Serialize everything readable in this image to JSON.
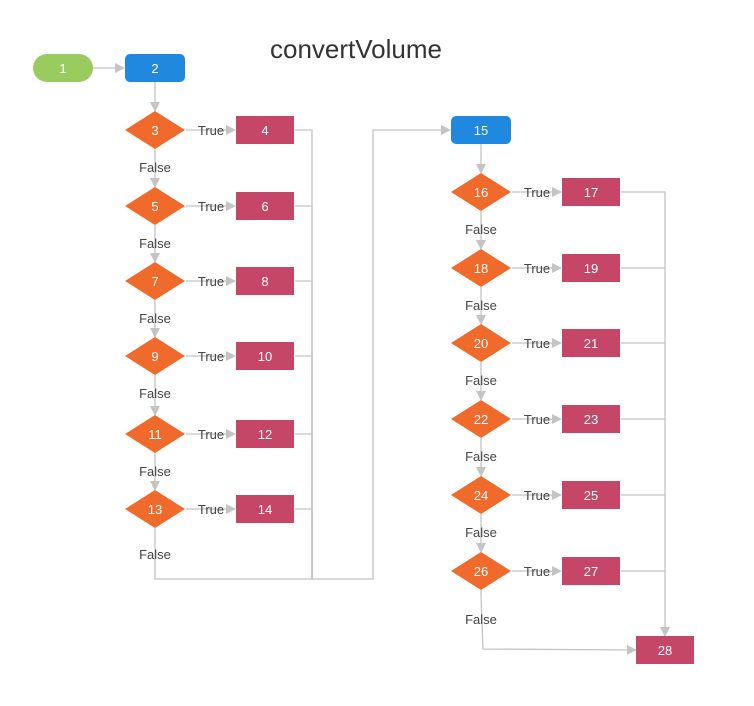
{
  "title": "convertVolume",
  "colors": {
    "start": "#9acb5e",
    "process": "#2188e0",
    "decision": "#f06a2c",
    "action": "#c64667",
    "edge": "#c4c4c4"
  },
  "nodes": [
    {
      "id": "1",
      "label": "1",
      "kind": "start"
    },
    {
      "id": "2",
      "label": "2",
      "kind": "process"
    },
    {
      "id": "3",
      "label": "3",
      "kind": "decision"
    },
    {
      "id": "4",
      "label": "4",
      "kind": "action"
    },
    {
      "id": "5",
      "label": "5",
      "kind": "decision"
    },
    {
      "id": "6",
      "label": "6",
      "kind": "action"
    },
    {
      "id": "7",
      "label": "7",
      "kind": "decision"
    },
    {
      "id": "8",
      "label": "8",
      "kind": "action"
    },
    {
      "id": "9",
      "label": "9",
      "kind": "decision"
    },
    {
      "id": "10",
      "label": "10",
      "kind": "action"
    },
    {
      "id": "11",
      "label": "11",
      "kind": "decision"
    },
    {
      "id": "12",
      "label": "12",
      "kind": "action"
    },
    {
      "id": "13",
      "label": "13",
      "kind": "decision"
    },
    {
      "id": "14",
      "label": "14",
      "kind": "action"
    },
    {
      "id": "15",
      "label": "15",
      "kind": "process"
    },
    {
      "id": "16",
      "label": "16",
      "kind": "decision"
    },
    {
      "id": "17",
      "label": "17",
      "kind": "action"
    },
    {
      "id": "18",
      "label": "18",
      "kind": "decision"
    },
    {
      "id": "19",
      "label": "19",
      "kind": "action"
    },
    {
      "id": "20",
      "label": "20",
      "kind": "decision"
    },
    {
      "id": "21",
      "label": "21",
      "kind": "action"
    },
    {
      "id": "22",
      "label": "22",
      "kind": "decision"
    },
    {
      "id": "23",
      "label": "23",
      "kind": "action"
    },
    {
      "id": "24",
      "label": "24",
      "kind": "decision"
    },
    {
      "id": "25",
      "label": "25",
      "kind": "action"
    },
    {
      "id": "26",
      "label": "26",
      "kind": "decision"
    },
    {
      "id": "27",
      "label": "27",
      "kind": "action"
    },
    {
      "id": "28",
      "label": "28",
      "kind": "action"
    }
  ],
  "edges": [
    {
      "from": "1",
      "to": "2",
      "label": ""
    },
    {
      "from": "2",
      "to": "3",
      "label": ""
    },
    {
      "from": "3",
      "to": "4",
      "label": "True"
    },
    {
      "from": "3",
      "to": "5",
      "label": "False"
    },
    {
      "from": "5",
      "to": "6",
      "label": "True"
    },
    {
      "from": "5",
      "to": "7",
      "label": "False"
    },
    {
      "from": "7",
      "to": "8",
      "label": "True"
    },
    {
      "from": "7",
      "to": "9",
      "label": "False"
    },
    {
      "from": "9",
      "to": "10",
      "label": "True"
    },
    {
      "from": "9",
      "to": "11",
      "label": "False"
    },
    {
      "from": "11",
      "to": "12",
      "label": "True"
    },
    {
      "from": "11",
      "to": "13",
      "label": "False"
    },
    {
      "from": "13",
      "to": "14",
      "label": "True"
    },
    {
      "from": "13",
      "to": "15",
      "label": "False"
    },
    {
      "from": "4",
      "to": "15",
      "label": ""
    },
    {
      "from": "6",
      "to": "15",
      "label": ""
    },
    {
      "from": "8",
      "to": "15",
      "label": ""
    },
    {
      "from": "10",
      "to": "15",
      "label": ""
    },
    {
      "from": "12",
      "to": "15",
      "label": ""
    },
    {
      "from": "14",
      "to": "15",
      "label": ""
    },
    {
      "from": "15",
      "to": "16",
      "label": ""
    },
    {
      "from": "16",
      "to": "17",
      "label": "True"
    },
    {
      "from": "16",
      "to": "18",
      "label": "False"
    },
    {
      "from": "18",
      "to": "19",
      "label": "True"
    },
    {
      "from": "18",
      "to": "20",
      "label": "False"
    },
    {
      "from": "20",
      "to": "21",
      "label": "True"
    },
    {
      "from": "20",
      "to": "22",
      "label": "False"
    },
    {
      "from": "22",
      "to": "23",
      "label": "True"
    },
    {
      "from": "22",
      "to": "24",
      "label": "False"
    },
    {
      "from": "24",
      "to": "25",
      "label": "True"
    },
    {
      "from": "24",
      "to": "26",
      "label": "False"
    },
    {
      "from": "26",
      "to": "27",
      "label": "True"
    },
    {
      "from": "26",
      "to": "28",
      "label": "False"
    },
    {
      "from": "17",
      "to": "28",
      "label": ""
    },
    {
      "from": "19",
      "to": "28",
      "label": ""
    },
    {
      "from": "21",
      "to": "28",
      "label": ""
    },
    {
      "from": "23",
      "to": "28",
      "label": ""
    },
    {
      "from": "25",
      "to": "28",
      "label": ""
    },
    {
      "from": "27",
      "to": "28",
      "label": ""
    }
  ]
}
